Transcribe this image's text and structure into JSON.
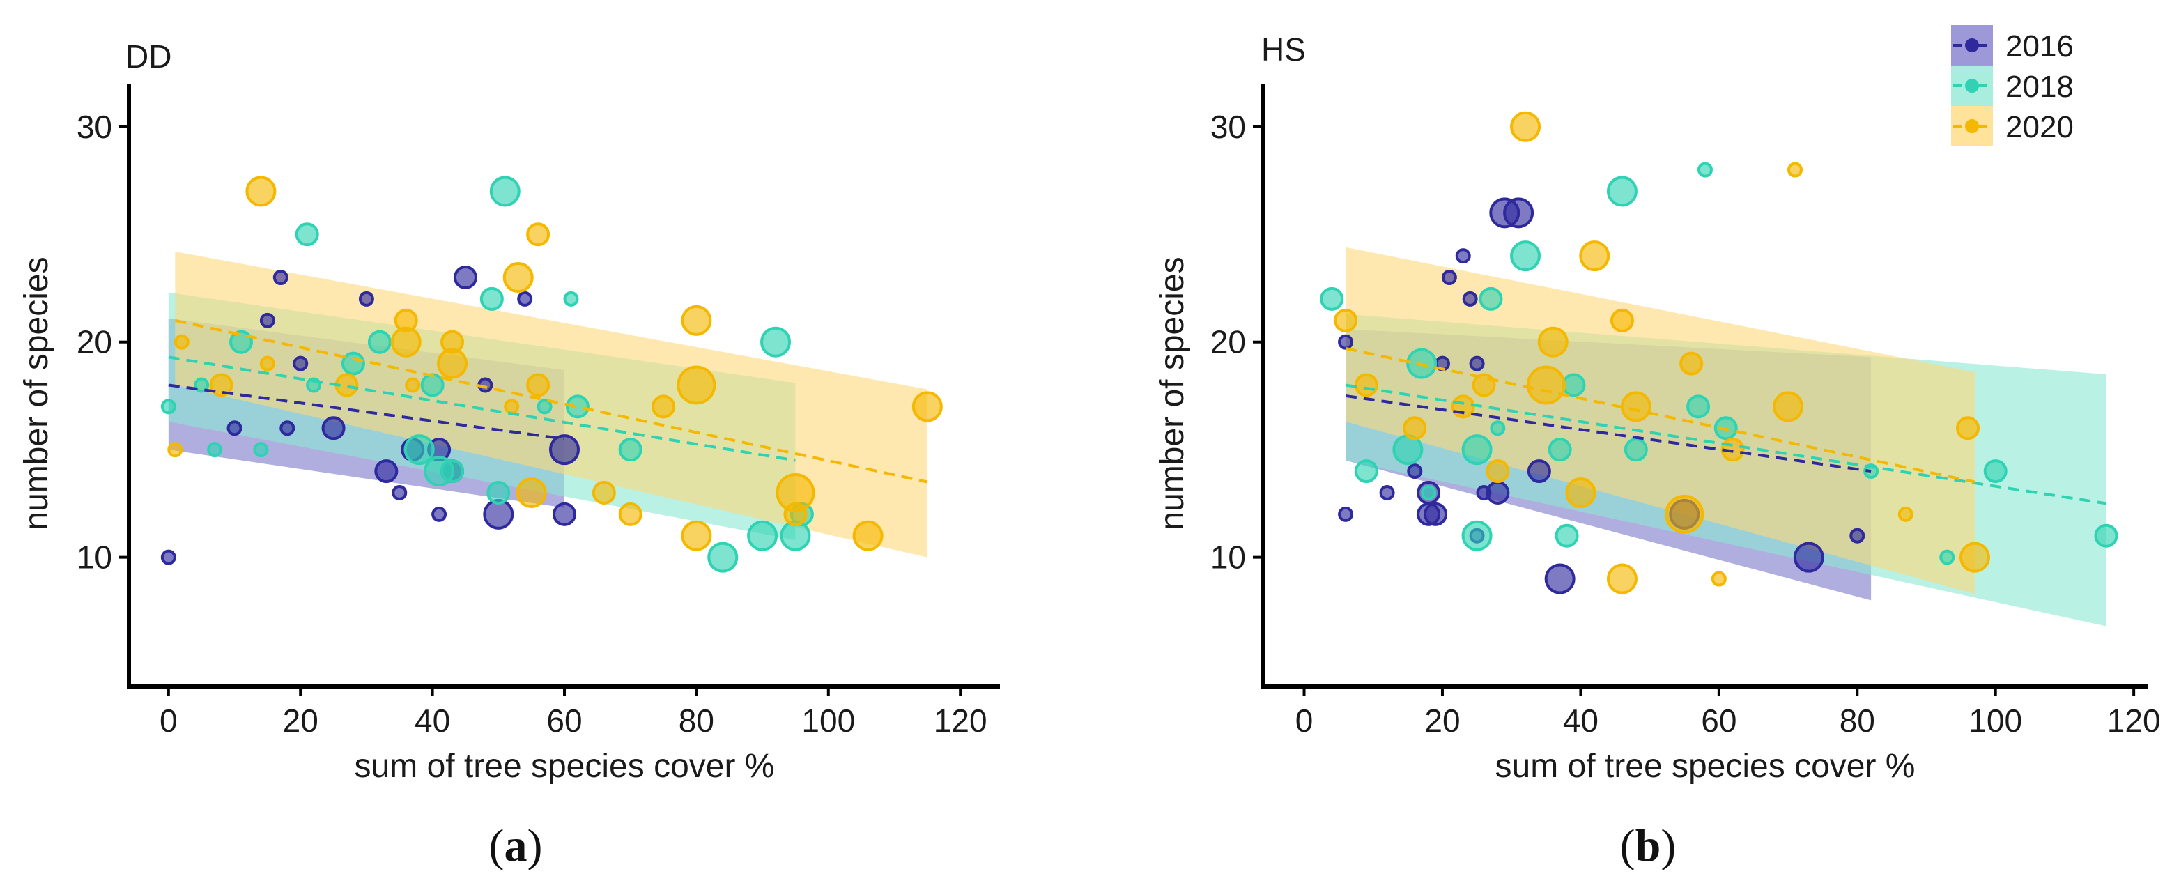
{
  "figure": {
    "caption_a": "a",
    "caption_b": "b"
  },
  "legend": {
    "position": "top-right",
    "entries": [
      {
        "label": "2016",
        "color": "#2E2A9E",
        "band_color": "#7C76C9"
      },
      {
        "label": "2018",
        "color": "#2FD3B3",
        "band_color": "#8CE7D4"
      },
      {
        "label": "2020",
        "color": "#F5B800",
        "band_color": "#FFD97A"
      }
    ]
  },
  "chart_data": [
    {
      "type": "scatter",
      "title": "DD",
      "xlabel": "sum of tree species cover %",
      "ylabel": "number of species",
      "xlim": [
        -6,
        126
      ],
      "ylim": [
        4,
        32
      ],
      "xticks": [
        0,
        20,
        40,
        60,
        80,
        100,
        120
      ],
      "yticks": [
        10,
        20,
        30
      ],
      "grid": false,
      "series": [
        {
          "name": "2016",
          "points": [
            [
              0,
              10,
              1
            ],
            [
              10,
              16,
              1
            ],
            [
              17,
              23,
              1
            ],
            [
              18,
              16,
              1
            ],
            [
              25,
              16,
              2
            ],
            [
              30,
              22,
              1
            ],
            [
              33,
              14,
              2
            ],
            [
              35,
              13,
              1
            ],
            [
              37,
              15,
              2
            ],
            [
              41,
              15,
              2
            ],
            [
              41,
              12,
              1
            ],
            [
              43,
              14,
              2
            ],
            [
              45,
              23,
              2
            ],
            [
              48,
              18,
              1
            ],
            [
              50,
              12,
              3
            ],
            [
              54,
              22,
              1
            ],
            [
              60,
              12,
              2
            ],
            [
              60,
              15,
              3
            ],
            [
              20,
              19,
              1
            ],
            [
              15,
              21,
              1
            ]
          ],
          "fit": {
            "x": [
              0,
              60
            ],
            "y": [
              18.0,
              15.5
            ],
            "lo": [
              15.0,
              12.3
            ],
            "hi": [
              21.1,
              18.7
            ]
          }
        },
        {
          "name": "2018",
          "points": [
            [
              0,
              17,
              1
            ],
            [
              7,
              15,
              1
            ],
            [
              14,
              15,
              1
            ],
            [
              21,
              25,
              2
            ],
            [
              22,
              18,
              1
            ],
            [
              32,
              20,
              2
            ],
            [
              38,
              15,
              3
            ],
            [
              40,
              18,
              2
            ],
            [
              41,
              14,
              3
            ],
            [
              43,
              14,
              2
            ],
            [
              49,
              22,
              2
            ],
            [
              50,
              13,
              2
            ],
            [
              51,
              27,
              3
            ],
            [
              57,
              17,
              1
            ],
            [
              61,
              22,
              1
            ],
            [
              62,
              17,
              2
            ],
            [
              70,
              15,
              2
            ],
            [
              84,
              10,
              3
            ],
            [
              90,
              11,
              3
            ],
            [
              92,
              20,
              3
            ],
            [
              95,
              11,
              3
            ],
            [
              96,
              12,
              2
            ],
            [
              5,
              18,
              1
            ],
            [
              11,
              20,
              2
            ],
            [
              28,
              19,
              2
            ]
          ],
          "fit": {
            "x": [
              0,
              95
            ],
            "y": [
              19.3,
              14.5
            ],
            "lo": [
              16.3,
              10.8
            ],
            "hi": [
              22.3,
              18.1
            ]
          }
        },
        {
          "name": "2020",
          "points": [
            [
              1,
              15,
              1
            ],
            [
              2,
              20,
              1
            ],
            [
              14,
              27,
              3
            ],
            [
              15,
              19,
              1
            ],
            [
              36,
              21,
              2
            ],
            [
              36,
              20,
              3
            ],
            [
              37,
              18,
              1
            ],
            [
              43,
              20,
              2
            ],
            [
              43,
              19,
              3
            ],
            [
              52,
              17,
              1
            ],
            [
              53,
              23,
              3
            ],
            [
              55,
              13,
              3
            ],
            [
              56,
              18,
              2
            ],
            [
              56,
              25,
              2
            ],
            [
              66,
              13,
              2
            ],
            [
              70,
              12,
              2
            ],
            [
              75,
              17,
              2
            ],
            [
              80,
              21,
              3
            ],
            [
              80,
              11,
              3
            ],
            [
              80,
              18,
              4
            ],
            [
              95,
              13,
              4
            ],
            [
              95,
              12,
              2
            ],
            [
              106,
              11,
              3
            ],
            [
              115,
              17,
              3
            ],
            [
              8,
              18,
              2
            ],
            [
              27,
              18,
              2
            ]
          ],
          "fit": {
            "x": [
              1,
              115
            ],
            "y": [
              21.0,
              13.5
            ],
            "lo": [
              18.0,
              10.0
            ],
            "hi": [
              24.2,
              17.8
            ]
          }
        }
      ]
    },
    {
      "type": "scatter",
      "title": "HS",
      "xlabel": "sum of tree species cover %",
      "ylabel": "number of species",
      "xlim": [
        -6,
        122
      ],
      "ylim": [
        4,
        32
      ],
      "xticks": [
        0,
        20,
        40,
        60,
        80,
        100,
        120
      ],
      "yticks": [
        10,
        20,
        30
      ],
      "grid": false,
      "series": [
        {
          "name": "2016",
          "points": [
            [
              6,
              20,
              1
            ],
            [
              6,
              12,
              1
            ],
            [
              12,
              13,
              1
            ],
            [
              16,
              14,
              1
            ],
            [
              18,
              12,
              2
            ],
            [
              18,
              13,
              2
            ],
            [
              19,
              12,
              2
            ],
            [
              21,
              23,
              1
            ],
            [
              23,
              24,
              1
            ],
            [
              24,
              22,
              1
            ],
            [
              25,
              11,
              1
            ],
            [
              26,
              13,
              1
            ],
            [
              28,
              13,
              2
            ],
            [
              29,
              26,
              3
            ],
            [
              31,
              26,
              3
            ],
            [
              34,
              14,
              2
            ],
            [
              37,
              9,
              3
            ],
            [
              73,
              10,
              3
            ],
            [
              80,
              11,
              1
            ],
            [
              55,
              12,
              3
            ],
            [
              25,
              19,
              1
            ],
            [
              20,
              19,
              1
            ]
          ],
          "fit": {
            "x": [
              6,
              82
            ],
            "y": [
              17.5,
              14.0
            ],
            "lo": [
              14.5,
              8.0
            ],
            "hi": [
              20.6,
              19.3
            ]
          }
        },
        {
          "name": "2018",
          "points": [
            [
              4,
              22,
              2
            ],
            [
              9,
              14,
              2
            ],
            [
              15,
              15,
              3
            ],
            [
              17,
              19,
              3
            ],
            [
              18,
              13,
              1
            ],
            [
              25,
              11,
              3
            ],
            [
              25,
              15,
              3
            ],
            [
              27,
              22,
              2
            ],
            [
              28,
              16,
              1
            ],
            [
              32,
              24,
              3
            ],
            [
              37,
              15,
              2
            ],
            [
              38,
              11,
              2
            ],
            [
              39,
              18,
              2
            ],
            [
              46,
              27,
              3
            ],
            [
              48,
              15,
              2
            ],
            [
              57,
              17,
              2
            ],
            [
              58,
              28,
              1
            ],
            [
              61,
              16,
              2
            ],
            [
              93,
              10,
              1
            ],
            [
              100,
              14,
              2
            ],
            [
              116,
              11,
              2
            ],
            [
              82,
              14,
              1
            ]
          ],
          "fit": {
            "x": [
              6,
              116
            ],
            "y": [
              18.0,
              12.5
            ],
            "lo": [
              14.5,
              6.8
            ],
            "hi": [
              21.3,
              18.5
            ]
          }
        },
        {
          "name": "2020",
          "points": [
            [
              6,
              21,
              2
            ],
            [
              9,
              18,
              2
            ],
            [
              16,
              16,
              2
            ],
            [
              23,
              17,
              2
            ],
            [
              26,
              18,
              2
            ],
            [
              28,
              14,
              2
            ],
            [
              32,
              30,
              3
            ],
            [
              36,
              20,
              3
            ],
            [
              35,
              18,
              4
            ],
            [
              40,
              13,
              3
            ],
            [
              42,
              24,
              3
            ],
            [
              46,
              21,
              2
            ],
            [
              46,
              9,
              3
            ],
            [
              48,
              17,
              3
            ],
            [
              55,
              12,
              4
            ],
            [
              56,
              19,
              2
            ],
            [
              60,
              9,
              1
            ],
            [
              62,
              15,
              2
            ],
            [
              71,
              28,
              1
            ],
            [
              70,
              17,
              3
            ],
            [
              87,
              12,
              1
            ],
            [
              96,
              16,
              2
            ],
            [
              97,
              10,
              3
            ]
          ],
          "fit": {
            "x": [
              6,
              97
            ],
            "y": [
              19.7,
              13.5
            ],
            "lo": [
              16.3,
              8.3
            ],
            "hi": [
              24.4,
              18.6
            ]
          }
        }
      ]
    }
  ]
}
